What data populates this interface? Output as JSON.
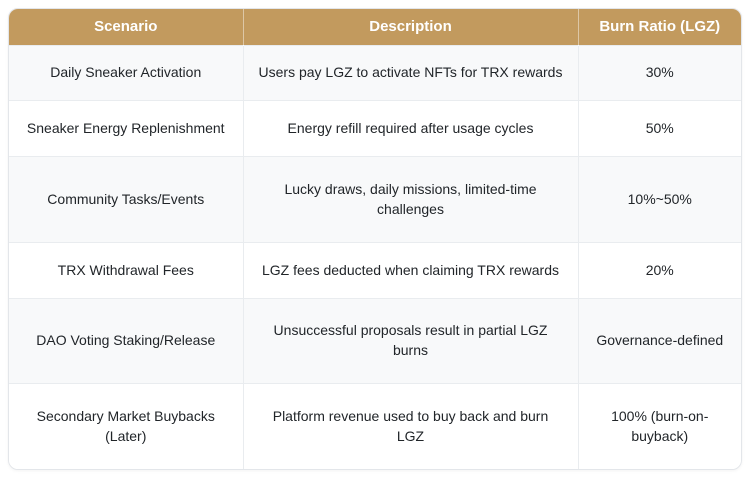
{
  "table": {
    "columns": [
      {
        "label": "Scenario"
      },
      {
        "label": "Description"
      },
      {
        "label": "Burn Ratio (LGZ)"
      }
    ],
    "rows": [
      [
        "Daily Sneaker Activation",
        "Users pay LGZ to activate NFTs for TRX rewards",
        "30%"
      ],
      [
        "Sneaker Energy Replenishment",
        "Energy refill required after usage cycles",
        "50%"
      ],
      [
        "Community Tasks/Events",
        "Lucky draws, daily missions, limited-time challenges",
        "10%~50%"
      ],
      [
        "TRX Withdrawal Fees",
        "LGZ fees deducted when claiming TRX rewards",
        "20%"
      ],
      [
        "DAO Voting Staking/Release",
        "Unsuccessful proposals result in partial LGZ burns",
        "Governance-defined"
      ],
      [
        "Secondary Market Buybacks (Later)",
        "Platform revenue used to buy back and burn LGZ",
        "100% (burn-on-buyback)"
      ]
    ],
    "colors": {
      "header_bg": "#C29A5E",
      "header_text": "#FFFFFF",
      "row_odd_bg": "#F8F9FA",
      "row_even_bg": "#FFFFFF",
      "border": "#E9ECEF",
      "body_text": "#212529"
    }
  },
  "chart_data": {
    "type": "table",
    "columns": [
      "Scenario",
      "Description",
      "Burn Ratio (LGZ)"
    ],
    "rows": [
      [
        "Daily Sneaker Activation",
        "Users pay LGZ to activate NFTs for TRX rewards",
        "30%"
      ],
      [
        "Sneaker Energy Replenishment",
        "Energy refill required after usage cycles",
        "50%"
      ],
      [
        "Community Tasks/Events",
        "Lucky draws, daily missions, limited-time challenges",
        "10%~50%"
      ],
      [
        "TRX Withdrawal Fees",
        "LGZ fees deducted when claiming TRX rewards",
        "20%"
      ],
      [
        "DAO Voting Staking/Release",
        "Unsuccessful proposals result in partial LGZ burns",
        "Governance-defined"
      ],
      [
        "Secondary Market Buybacks (Later)",
        "Platform revenue used to buy back and burn LGZ",
        "100% (burn-on-buyback)"
      ]
    ]
  }
}
